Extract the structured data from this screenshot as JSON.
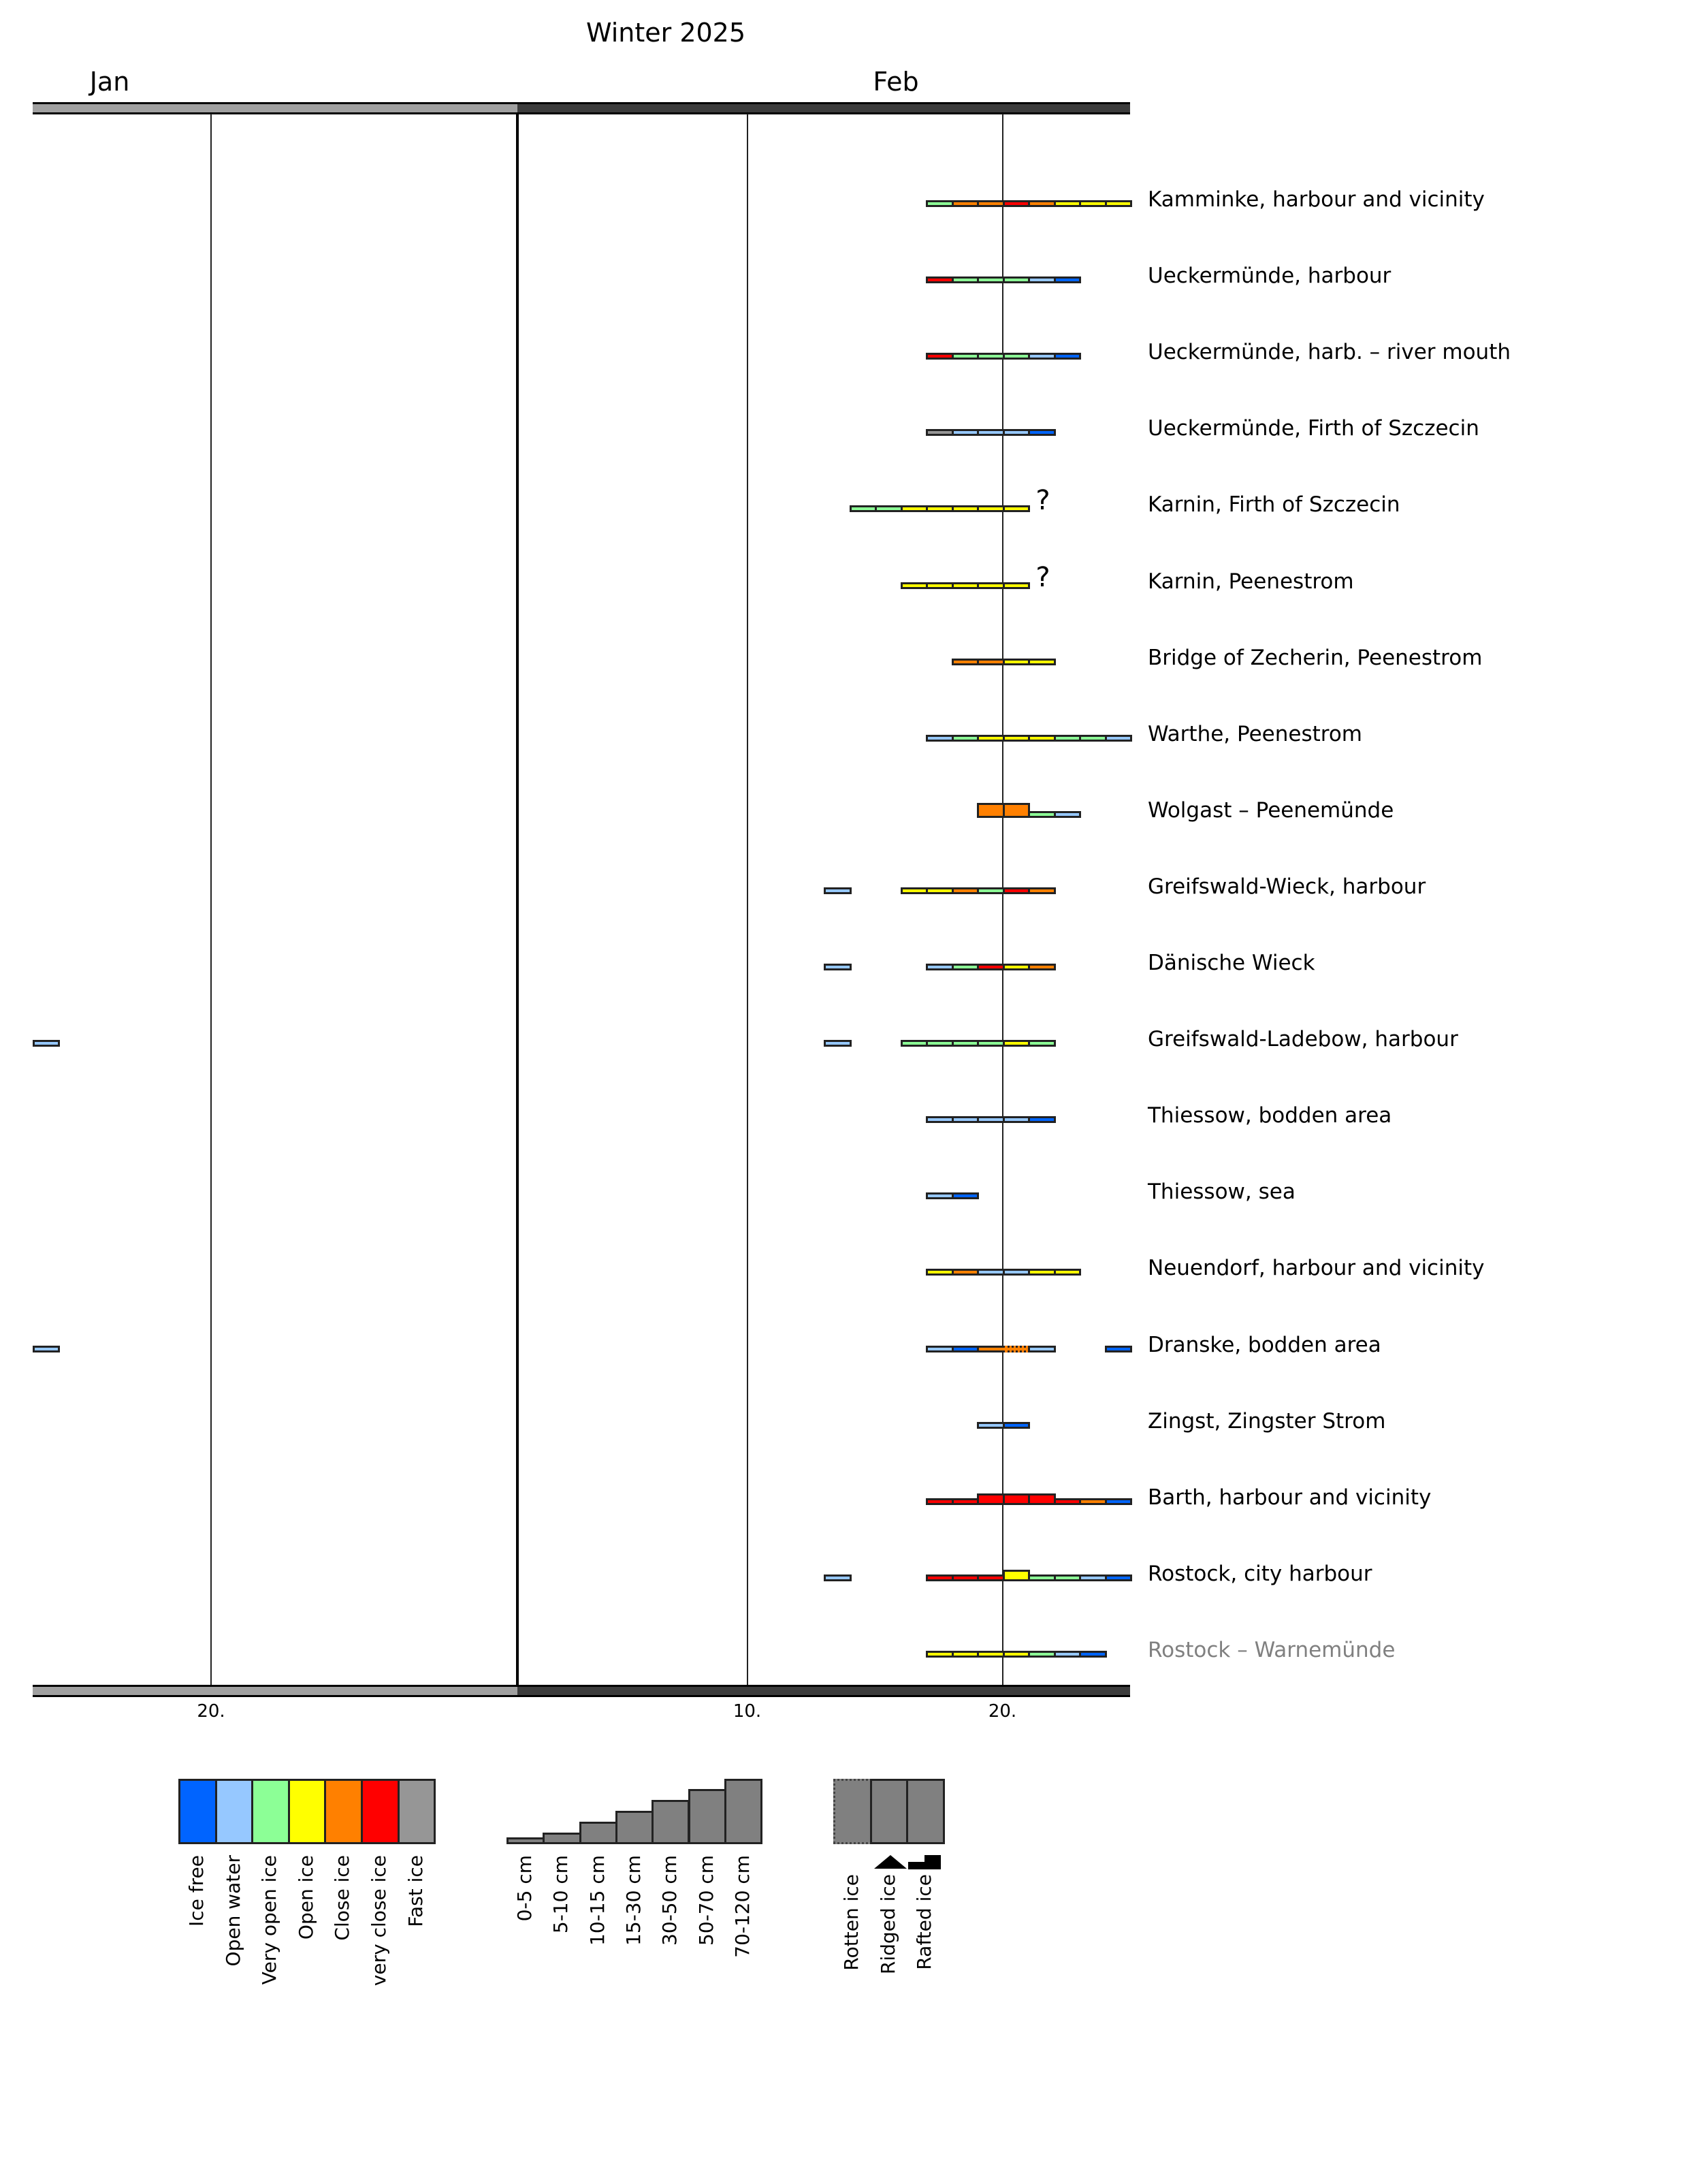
{
  "chart_data": {
    "type": "gantt-ice-chart",
    "title": "Winter 2025",
    "months": [
      "Jan",
      "Feb"
    ],
    "x_range": [
      "01-13",
      "02-25"
    ],
    "ticks": [
      {
        "date": "01-20",
        "label": "20."
      },
      {
        "date": "02-10",
        "label": "10."
      },
      {
        "date": "02-20",
        "label": "20."
      }
    ],
    "colors": {
      "ice_free": "#0064ff",
      "open_water": "#96c8ff",
      "very_open_ice": "#8cff96",
      "open_ice": "#ffff00",
      "close_ice": "#ff8000",
      "very_close_ice": "#ff0000",
      "fast_ice": "#969696"
    },
    "default_thickness": "0-5 cm",
    "stations": [
      {
        "name": "Kamminke, harbour and vicinity",
        "runs": [
          {
            "start": "02-17",
            "cells": [
              "very_open_ice",
              "close_ice",
              "close_ice",
              "very_close_ice",
              "close_ice",
              "open_ice",
              "open_ice",
              "open_ice"
            ]
          }
        ]
      },
      {
        "name": "Ueckermünde, harbour",
        "runs": [
          {
            "start": "02-17",
            "cells": [
              "very_close_ice",
              "very_open_ice",
              "very_open_ice",
              "very_open_ice",
              "open_water",
              "ice_free"
            ]
          }
        ]
      },
      {
        "name": "Ueckermünde, harb. – river mouth",
        "runs": [
          {
            "start": "02-17",
            "cells": [
              "very_close_ice",
              "very_open_ice",
              "very_open_ice",
              "very_open_ice",
              "open_water",
              "ice_free"
            ]
          }
        ]
      },
      {
        "name": "Ueckermünde, Firth of Szczecin",
        "runs": [
          {
            "start": "02-17",
            "cells": [
              "fast_ice",
              "open_water",
              "open_water",
              "open_water",
              "ice_free"
            ]
          }
        ]
      },
      {
        "name": "Karnin, Firth of Szczecin",
        "question": "?",
        "runs": [
          {
            "start": "02-14",
            "cells": [
              "very_open_ice",
              "very_open_ice",
              "open_ice",
              "open_ice",
              "open_ice",
              "open_ice",
              "open_ice"
            ]
          }
        ]
      },
      {
        "name": "Karnin, Peenestrom",
        "question": "?",
        "runs": [
          {
            "start": "02-16",
            "cells": [
              "open_ice",
              "open_ice",
              "open_ice",
              "open_ice",
              "open_ice"
            ]
          }
        ]
      },
      {
        "name": "Bridge of Zecherin, Peenestrom",
        "runs": [
          {
            "start": "02-18",
            "cells": [
              "close_ice",
              "close_ice",
              "open_ice",
              "open_ice"
            ]
          }
        ]
      },
      {
        "name": "Warthe, Peenestrom",
        "runs": [
          {
            "start": "02-17",
            "cells": [
              "open_water",
              "very_open_ice",
              "open_ice",
              "open_ice",
              "open_ice",
              "very_open_ice",
              "very_open_ice",
              "open_water"
            ]
          }
        ]
      },
      {
        "name": "Wolgast – Peenemünde",
        "runs": [
          {
            "start": "02-19",
            "cells": [
              {
                "c": "close_ice",
                "t": "10-15 cm"
              },
              {
                "c": "close_ice",
                "t": "10-15 cm"
              },
              "very_open_ice",
              "open_water"
            ]
          }
        ]
      },
      {
        "name": "Greifswald-Wieck, harbour",
        "runs": [
          {
            "start": "02-13",
            "cells": [
              "open_water"
            ]
          },
          {
            "start": "02-16",
            "cells": [
              "open_ice",
              "open_ice",
              "close_ice",
              "very_open_ice",
              "very_close_ice",
              "close_ice"
            ]
          }
        ]
      },
      {
        "name": "Dänische Wieck",
        "runs": [
          {
            "start": "02-13",
            "cells": [
              "open_water"
            ]
          },
          {
            "start": "02-17",
            "cells": [
              "open_water",
              "very_open_ice",
              "very_close_ice",
              "open_ice",
              "close_ice"
            ]
          }
        ]
      },
      {
        "name": "Greifswald-Ladebow, harbour",
        "runs": [
          {
            "start": "01-13",
            "cells": [
              "open_water"
            ]
          },
          {
            "start": "02-13",
            "cells": [
              "open_water"
            ]
          },
          {
            "start": "02-16",
            "cells": [
              "very_open_ice",
              "very_open_ice",
              "very_open_ice",
              "very_open_ice",
              "open_ice",
              "very_open_ice"
            ]
          }
        ]
      },
      {
        "name": "Thiessow, bodden area",
        "runs": [
          {
            "start": "02-17",
            "cells": [
              "open_water",
              "open_water",
              "open_water",
              "open_water",
              "ice_free"
            ]
          }
        ]
      },
      {
        "name": "Thiessow, sea",
        "runs": [
          {
            "start": "02-17",
            "cells": [
              "open_water",
              "ice_free"
            ]
          }
        ]
      },
      {
        "name": "Neuendorf, harbour and vicinity",
        "runs": [
          {
            "start": "02-17",
            "cells": [
              "open_ice",
              "close_ice",
              "open_water",
              "open_water",
              "open_ice",
              "open_ice"
            ]
          }
        ]
      },
      {
        "name": "Dranske, bodden area",
        "runs": [
          {
            "start": "01-13",
            "cells": [
              "open_water"
            ]
          },
          {
            "start": "02-17",
            "cells": [
              "open_water",
              "ice_free",
              "close_ice",
              {
                "c": "close_ice",
                "r": true
              },
              "open_water"
            ]
          },
          {
            "start": "02-24",
            "cells": [
              "ice_free"
            ]
          }
        ]
      },
      {
        "name": "Zingst, Zingster Strom",
        "runs": [
          {
            "start": "02-19",
            "cells": [
              "open_water",
              "ice_free"
            ]
          }
        ]
      },
      {
        "name": "Barth, harbour and vicinity",
        "runs": [
          {
            "start": "02-17",
            "cells": [
              "very_close_ice",
              "very_close_ice",
              {
                "c": "very_close_ice",
                "t": "5-10 cm"
              },
              {
                "c": "very_close_ice",
                "t": "5-10 cm"
              },
              {
                "c": "very_close_ice",
                "t": "5-10 cm"
              },
              "very_close_ice",
              "close_ice",
              "ice_free"
            ]
          }
        ]
      },
      {
        "name": "Rostock, city harbour",
        "runs": [
          {
            "start": "02-13",
            "cells": [
              "open_water"
            ]
          },
          {
            "start": "02-17",
            "cells": [
              "very_close_ice",
              "very_close_ice",
              "very_close_ice",
              {
                "c": "open_ice",
                "t": "5-10 cm"
              },
              "very_open_ice",
              "very_open_ice",
              "open_water",
              "ice_free"
            ]
          }
        ]
      },
      {
        "name": "Rostock – Warnemünde",
        "muted": true,
        "runs": [
          {
            "start": "02-17",
            "cells": [
              "open_ice",
              "open_ice",
              "open_ice",
              "open_ice",
              "very_open_ice",
              "open_water",
              "ice_free"
            ]
          }
        ]
      }
    ],
    "legend_concentration": [
      {
        "key": "ice_free",
        "label": "Ice free"
      },
      {
        "key": "open_water",
        "label": "Open water"
      },
      {
        "key": "very_open_ice",
        "label": "Very open ice"
      },
      {
        "key": "open_ice",
        "label": "Open ice"
      },
      {
        "key": "close_ice",
        "label": "Close ice"
      },
      {
        "key": "very_close_ice",
        "label": "very close ice"
      },
      {
        "key": "fast_ice",
        "label": "Fast ice"
      }
    ],
    "legend_thickness": [
      {
        "label": "0-5 cm",
        "level": 1
      },
      {
        "label": "5-10 cm",
        "level": 2
      },
      {
        "label": "10-15 cm",
        "level": 3
      },
      {
        "label": "15-30 cm",
        "level": 4
      },
      {
        "label": "30-50 cm",
        "level": 5
      },
      {
        "label": "50-70 cm",
        "level": 6
      },
      {
        "label": "70-120 cm",
        "level": 7
      }
    ],
    "legend_form": [
      {
        "label": "Rotten ice",
        "icon": "none"
      },
      {
        "label": "Ridged ice",
        "icon": "triangle"
      },
      {
        "label": "Rafted ice",
        "icon": "step"
      }
    ]
  }
}
